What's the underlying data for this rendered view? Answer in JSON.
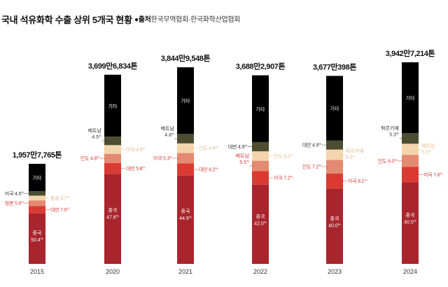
{
  "header": {
    "title": "국내 석유화학 수출 상위 5개국 현황",
    "source_label": "●출처",
    "source_text": "한국무역협회·한국화학산업협회"
  },
  "chart_data": {
    "type": "bar",
    "stacked": true,
    "title": "국내 석유화학 수출 상위 5개국 현황",
    "xlabel": "",
    "ylabel": "",
    "categories": [
      "2015",
      "2020",
      "2021",
      "2022",
      "2023",
      "2024"
    ],
    "totals": [
      "1,957만7,765톤",
      "3,699만6,834톤",
      "3,844만9,548톤",
      "3,688만2,907톤",
      "3,677만398톤",
      "3,942만7,214톤"
    ],
    "total_values": [
      19577765,
      36996834,
      38449548,
      36882907,
      36770398,
      39427214
    ],
    "percent_suffix": "%",
    "colors": {
      "china": "#a8252d",
      "second": "#d93b33",
      "third": "#e58a72",
      "fourth": "#f3d5ad",
      "fifth": "#4d4d32",
      "other": "#000000"
    },
    "label_colors": {
      "red": "#d43b33",
      "pink": "#e58a72",
      "peach": "#e7b98b",
      "dark": "#333333",
      "white": "#ffffff"
    },
    "bars": [
      {
        "year": "2015",
        "segments": [
          {
            "role": "china",
            "name": "중국",
            "value": 50.4
          },
          {
            "role": "second",
            "name": "대만",
            "value": 7.5
          },
          {
            "role": "third",
            "name": "일본",
            "value": 5.6
          },
          {
            "role": "fourth",
            "name": "홍콩",
            "value": 4.7
          },
          {
            "role": "fifth",
            "name": "미국",
            "value": 4.5
          },
          {
            "role": "other",
            "name": "기타"
          }
        ]
      },
      {
        "year": "2020",
        "segments": [
          {
            "role": "china",
            "name": "중국",
            "value": 47.6
          },
          {
            "role": "second",
            "name": "대만",
            "value": 5.8
          },
          {
            "role": "third",
            "name": "인도",
            "value": 4.8
          },
          {
            "role": "fourth",
            "name": "미국",
            "value": 4.6
          },
          {
            "role": "fifth",
            "name": "베트남",
            "value": 4.5
          },
          {
            "role": "other",
            "name": "기타"
          }
        ]
      },
      {
        "year": "2021",
        "segments": [
          {
            "role": "china",
            "name": "중국",
            "value": 44.9
          },
          {
            "role": "second",
            "name": "대만",
            "value": 6.2
          },
          {
            "role": "third",
            "name": "미국",
            "value": 5.3
          },
          {
            "role": "fourth",
            "name": "인도",
            "value": 4.9
          },
          {
            "role": "fifth",
            "name": "베트남",
            "value": 4.8
          },
          {
            "role": "other",
            "name": "기타"
          }
        ]
      },
      {
        "year": "2022",
        "segments": [
          {
            "role": "china",
            "name": "중국",
            "value": 42.0
          },
          {
            "role": "second",
            "name": "미국",
            "value": 7.2
          },
          {
            "role": "third",
            "name": "베트남",
            "value": 5.5
          },
          {
            "role": "fourth",
            "name": "인도",
            "value": 5.0
          },
          {
            "role": "fifth",
            "name": "대만",
            "value": 4.9
          },
          {
            "role": "other",
            "name": "기타"
          }
        ]
      },
      {
        "year": "2023",
        "segments": [
          {
            "role": "china",
            "name": "중국",
            "value": 40.0
          },
          {
            "role": "second",
            "name": "미국",
            "value": 8.1
          },
          {
            "role": "third",
            "name": "인도",
            "value": 7.2
          },
          {
            "role": "fourth",
            "name": "튀르키예",
            "value": 5.5
          },
          {
            "role": "fifth",
            "name": "대만",
            "value": 4.9
          },
          {
            "role": "other",
            "name": "기타"
          }
        ]
      },
      {
        "year": "2024",
        "segments": [
          {
            "role": "china",
            "name": "중국",
            "value": 40.5
          },
          {
            "role": "second",
            "name": "미국",
            "value": 7.6
          },
          {
            "role": "third",
            "name": "인도",
            "value": 6.0
          },
          {
            "role": "fourth",
            "name": "베트남",
            "value": 5.5
          },
          {
            "role": "fifth",
            "name": "튀르키예",
            "value": 5.3
          },
          {
            "role": "other",
            "name": "기타"
          }
        ]
      }
    ]
  }
}
